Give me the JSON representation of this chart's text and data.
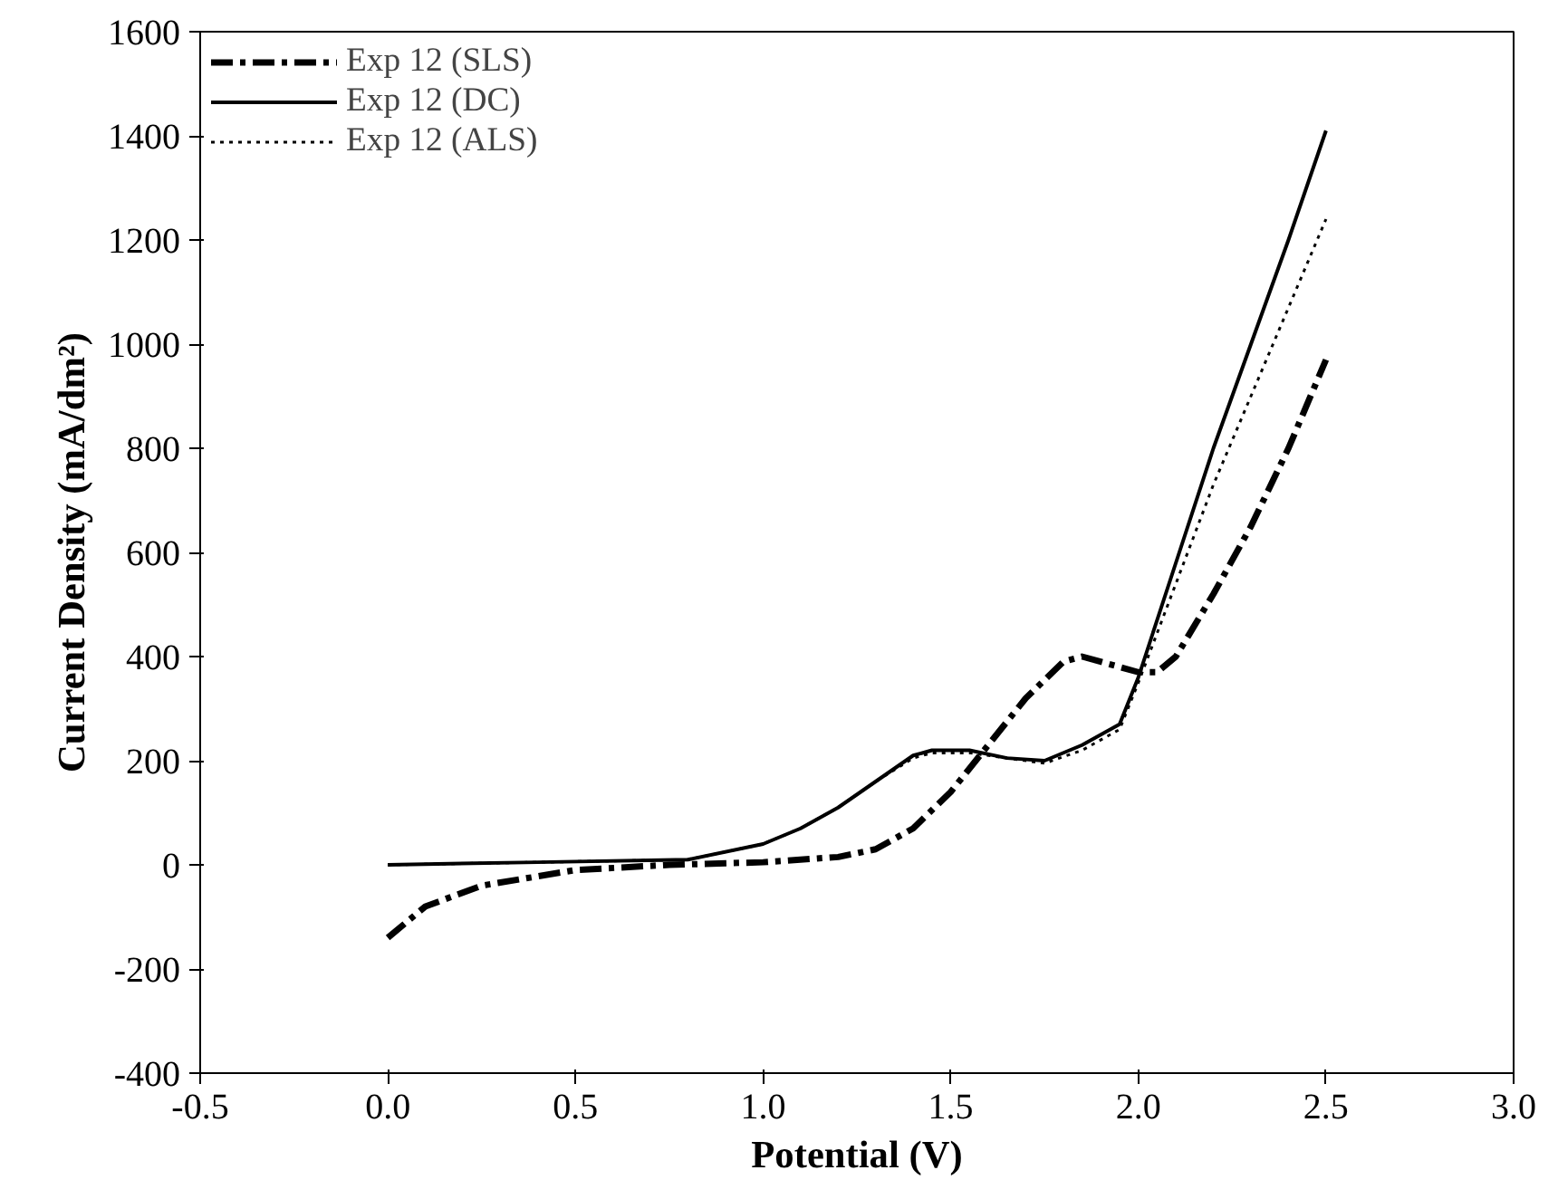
{
  "chart_data": {
    "type": "line",
    "xlabel": "Potential (V)",
    "ylabel": "Current Density (mA/dm²)",
    "xlim": [
      -0.5,
      3.0
    ],
    "xticks": [
      {
        "value": -0.5,
        "label": "-0.5"
      },
      {
        "value": 0,
        "label": "0.0"
      },
      {
        "value": 0.5,
        "label": "0.5"
      },
      {
        "value": 1.0,
        "label": "1.0"
      },
      {
        "value": 1.5,
        "label": "1.5"
      },
      {
        "value": 2.0,
        "label": "2.0"
      },
      {
        "value": 2.5,
        "label": "2.5"
      },
      {
        "value": 3.0,
        "label": "3.0"
      }
    ],
    "ylim": [
      -400,
      1600
    ],
    "yticks": [
      -400,
      -200,
      0,
      200,
      400,
      600,
      800,
      1000,
      1200,
      1400,
      1600
    ],
    "grid": false,
    "legend": "top left",
    "marker": "none",
    "series": [
      {
        "name": "Exp 12 (SLS)",
        "color": "#000000",
        "line_style": "dashdot",
        "x": [
          0,
          0.1,
          0.25,
          0.5,
          0.75,
          1.0,
          1.2,
          1.3,
          1.4,
          1.5,
          1.6,
          1.7,
          1.8,
          1.85,
          1.95,
          2.0,
          2.05,
          2.1,
          2.2,
          2.3,
          2.4,
          2.5
        ],
        "values": [
          -140,
          -80,
          -40,
          -10,
          0,
          5,
          15,
          30,
          70,
          140,
          230,
          320,
          390,
          400,
          380,
          370,
          370,
          400,
          520,
          650,
          800,
          970
        ]
      },
      {
        "name": "Exp 12 (DC)",
        "color": "#000000",
        "line_style": "solid",
        "x": [
          0,
          0.4,
          0.8,
          1.0,
          1.1,
          1.2,
          1.3,
          1.4,
          1.45,
          1.55,
          1.65,
          1.75,
          1.85,
          1.95,
          2.0,
          2.1,
          2.2,
          2.3,
          2.4,
          2.5
        ],
        "values": [
          0,
          5,
          10,
          40,
          70,
          110,
          160,
          210,
          220,
          220,
          205,
          200,
          230,
          270,
          360,
          580,
          800,
          1000,
          1200,
          1410
        ]
      },
      {
        "name": "Exp 12 (ALS)",
        "color": "#000000",
        "line_style": "dotted",
        "x": [
          0,
          0.4,
          0.8,
          1.0,
          1.1,
          1.2,
          1.3,
          1.4,
          1.45,
          1.55,
          1.65,
          1.75,
          1.85,
          1.95,
          2.0,
          2.1,
          2.2,
          2.3,
          2.4,
          2.5
        ],
        "values": [
          0,
          5,
          10,
          40,
          70,
          110,
          160,
          205,
          215,
          215,
          205,
          195,
          220,
          260,
          350,
          540,
          730,
          900,
          1070,
          1240
        ]
      }
    ]
  }
}
